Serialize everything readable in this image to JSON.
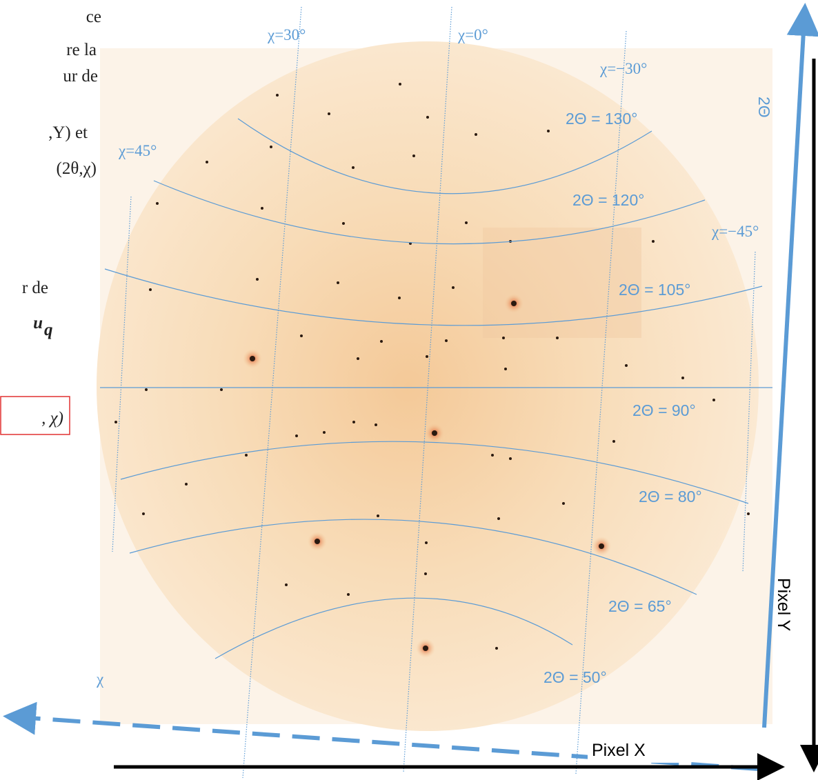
{
  "side_text": {
    "lines": [
      "ce",
      "re la",
      "ur de",
      ",Y) et",
      "(2θ,χ)"
    ],
    "lines2": [
      "r de",
      "u"
    ],
    "subscript": "q",
    "boxed": ", χ)"
  },
  "chi_labels": [
    "χ=30°",
    "χ=0°",
    "χ=−30°",
    "χ=45°",
    "χ=−45°"
  ],
  "two_theta_labels": [
    "2Θ = 130°",
    "2Θ = 120°",
    "2Θ = 105°",
    "2Θ = 90°",
    "2Θ = 80°",
    "2Θ = 65°",
    "2Θ = 50°"
  ],
  "axes": {
    "two_theta": "2Θ",
    "pixel_y": "Pixel Y",
    "pixel_x": "Pixel X",
    "chi": "χ"
  }
}
